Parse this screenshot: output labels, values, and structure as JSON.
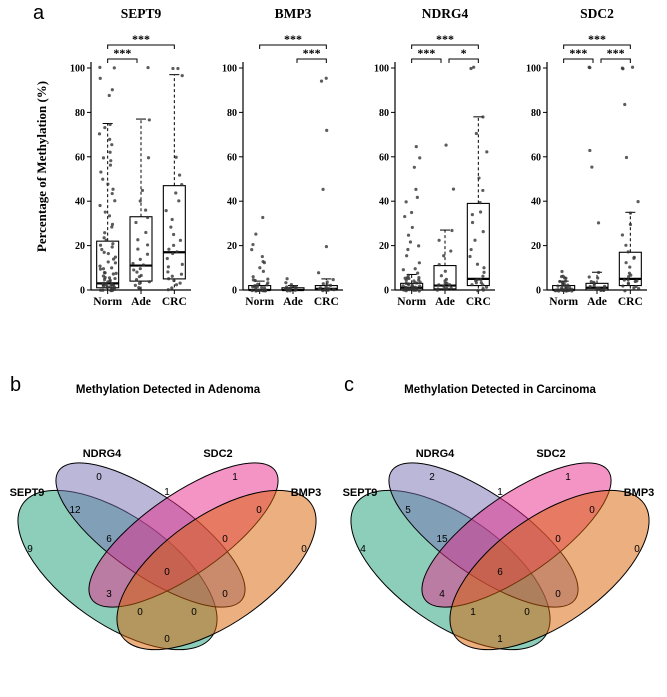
{
  "letters": {
    "a": "a",
    "b": "b",
    "c": "c"
  },
  "chart_data": [
    {
      "type": "boxplot-strip",
      "panel": "a",
      "ylabel": "Percentage of Methylation (%)",
      "ylim": [
        0,
        100
      ],
      "yticks": [
        0,
        20,
        40,
        60,
        80,
        100
      ],
      "groups": [
        "Norm",
        "Ade",
        "CRC"
      ],
      "box_stats_format": [
        "whisker_low",
        "q1",
        "median",
        "q3",
        "whisker_high"
      ],
      "subplots": [
        {
          "title": "SEPT9",
          "boxes": [
            [
              0,
              1,
              3,
              22,
              75
            ],
            [
              0,
              4,
              11,
              33,
              77
            ],
            [
              0,
              5,
              17,
              47,
              97
            ]
          ],
          "points": [
            [
              0,
              0,
              0,
              0,
              0,
              0,
              1,
              1,
              1,
              1,
              1,
              2,
              2,
              2,
              2,
              2,
              3,
              3,
              3,
              3,
              4,
              4,
              4,
              5,
              5,
              5,
              6,
              6,
              7,
              7,
              8,
              8,
              9,
              10,
              10,
              11,
              12,
              13,
              14,
              15,
              16,
              17,
              18,
              19,
              20,
              21,
              22,
              24,
              26,
              28,
              30,
              33,
              35,
              38,
              40,
              43,
              45,
              48,
              50,
              53,
              56,
              58,
              60,
              62,
              65,
              68,
              70,
              73,
              75,
              88,
              90,
              95,
              100,
              100
            ],
            [
              0,
              1,
              2,
              3,
              4,
              5,
              6,
              7,
              8,
              9,
              10,
              11,
              12,
              14,
              16,
              18,
              20,
              23,
              26,
              30,
              33,
              36,
              40,
              45,
              60,
              77,
              100
            ],
            [
              0,
              1,
              2,
              3,
              4,
              5,
              6,
              7,
              8,
              10,
              12,
              14,
              16,
              17,
              18,
              20,
              22,
              25,
              28,
              32,
              36,
              40,
              44,
              47,
              52,
              60,
              97,
              100,
              100
            ]
          ],
          "sig": [
            {
              "a": 0,
              "b": 1,
              "label": "***",
              "level": 1
            },
            {
              "a": 0,
              "b": 2,
              "label": "***",
              "level": 2
            }
          ]
        },
        {
          "title": "BMP3",
          "boxes": [
            [
              0,
              0,
              0,
              2,
              4
            ],
            [
              0,
              0,
              0,
              1,
              2
            ],
            [
              0,
              0,
              0.5,
              2,
              5
            ]
          ],
          "points": [
            [
              0,
              0,
              0,
              0,
              0,
              0,
              0,
              0,
              0,
              0,
              0,
              0,
              0,
              0,
              0,
              1,
              1,
              1,
              1,
              2,
              2,
              2,
              2,
              3,
              3,
              4,
              5,
              5,
              6,
              8,
              10,
              12,
              13,
              15,
              18,
              20,
              25,
              33
            ],
            [
              0,
              0,
              0,
              0,
              0,
              0,
              0,
              0,
              1,
              1,
              1,
              2,
              2,
              3,
              5
            ],
            [
              0,
              0,
              0,
              0,
              0,
              0,
              0,
              0,
              0,
              0,
              0,
              0,
              1,
              1,
              1,
              2,
              2,
              3,
              4,
              5,
              8,
              20,
              45,
              72,
              94,
              95
            ]
          ],
          "sig": [
            {
              "a": 1,
              "b": 2,
              "label": "***",
              "level": 1
            },
            {
              "a": 0,
              "b": 2,
              "label": "***",
              "level": 2
            }
          ]
        },
        {
          "title": "NDRG4",
          "boxes": [
            [
              0,
              0,
              1,
              3,
              7
            ],
            [
              0,
              0.5,
              2,
              11,
              27
            ],
            [
              0,
              2,
              5,
              39,
              78
            ]
          ],
          "points": [
            [
              0,
              0,
              0,
              0,
              0,
              0,
              0,
              0,
              0,
              0,
              1,
              1,
              1,
              1,
              1,
              1,
              2,
              2,
              2,
              2,
              2,
              3,
              3,
              3,
              3,
              4,
              4,
              4,
              5,
              5,
              5,
              6,
              6,
              7,
              8,
              9,
              10,
              12,
              15,
              18,
              20,
              22,
              25,
              28,
              33,
              35,
              40,
              42,
              45,
              55,
              60,
              65
            ],
            [
              0,
              0,
              1,
              1,
              1,
              2,
              2,
              2,
              3,
              3,
              4,
              5,
              6,
              8,
              11,
              15,
              18,
              22,
              27,
              45,
              65
            ],
            [
              0,
              0,
              1,
              1,
              2,
              2,
              3,
              3,
              4,
              5,
              5,
              6,
              8,
              10,
              12,
              15,
              18,
              22,
              26,
              30,
              34,
              35,
              39,
              45,
              50,
              62,
              70,
              78,
              100,
              100
            ]
          ],
          "sig": [
            {
              "a": 0,
              "b": 1,
              "label": "***",
              "level": 1
            },
            {
              "a": 1,
              "b": 2,
              "label": "*",
              "level": 1
            },
            {
              "a": 0,
              "b": 2,
              "label": "***",
              "level": 2
            }
          ]
        },
        {
          "title": "SDC2",
          "boxes": [
            [
              0,
              0,
              0,
              2,
              4
            ],
            [
              0,
              0,
              1,
              3,
              8
            ],
            [
              0,
              2,
              5,
              17,
              35
            ]
          ],
          "points": [
            [
              0,
              0,
              0,
              0,
              0,
              0,
              0,
              0,
              0,
              0,
              0,
              0,
              0,
              0,
              0,
              0,
              0,
              0,
              1,
              1,
              1,
              1,
              1,
              2,
              2,
              2,
              2,
              3,
              3,
              3,
              4,
              4,
              5,
              5,
              6,
              6,
              8
            ],
            [
              0,
              0,
              0,
              0,
              1,
              1,
              1,
              1,
              2,
              2,
              2,
              3,
              3,
              4,
              5,
              6,
              8,
              30,
              55,
              63,
              100,
              100
            ],
            [
              0,
              1,
              1,
              2,
              2,
              3,
              3,
              4,
              4,
              5,
              5,
              6,
              7,
              8,
              10,
              12,
              14,
              15,
              17,
              20,
              25,
              30,
              35,
              40,
              60,
              84,
              100,
              100,
              100
            ]
          ],
          "sig": [
            {
              "a": 0,
              "b": 1,
              "label": "***",
              "level": 1
            },
            {
              "a": 1,
              "b": 2,
              "label": "***",
              "level": 1
            },
            {
              "a": 0,
              "b": 2,
              "label": "***",
              "level": 2
            }
          ]
        }
      ]
    },
    {
      "type": "venn4",
      "panel": "b",
      "title": "Methylation Detected in Adenoma",
      "sets": [
        "SEPT9",
        "NDRG4",
        "SDC2",
        "BMP3"
      ],
      "set_colors": {
        "SEPT9": "#1B9E77",
        "NDRG4": "#7570B3",
        "SDC2": "#E7298A",
        "BMP3": "#D95F02"
      },
      "regions": {
        "sept9": 9,
        "ndrg4": 0,
        "sdc2": 1,
        "bmp3": 0,
        "sept9_ndrg4": 12,
        "ndrg4_sdc2": 1,
        "sdc2_bmp3": 0,
        "sept9_ndrg4_sdc2": 6,
        "ndrg4_sdc2_bmp3": 0,
        "sept9_sdc2": 3,
        "ndrg4_bmp3": 0,
        "sept9_sdc2_bmp3": 0,
        "sept9_ndrg4_bmp3": 0,
        "sept9_bmp3": 0,
        "all_four": 0
      }
    },
    {
      "type": "venn4",
      "panel": "c",
      "title": "Methylation Detected in Carcinoma",
      "sets": [
        "SEPT9",
        "NDRG4",
        "SDC2",
        "BMP3"
      ],
      "set_colors": {
        "SEPT9": "#1B9E77",
        "NDRG4": "#7570B3",
        "SDC2": "#E7298A",
        "BMP3": "#D95F02"
      },
      "regions": {
        "sept9": 4,
        "ndrg4": 2,
        "sdc2": 1,
        "bmp3": 0,
        "sept9_ndrg4": 5,
        "ndrg4_sdc2": 1,
        "sdc2_bmp3": 0,
        "sept9_ndrg4_sdc2": 15,
        "ndrg4_sdc2_bmp3": 0,
        "sept9_sdc2": 4,
        "ndrg4_bmp3": 0,
        "sept9_sdc2_bmp3": 1,
        "sept9_ndrg4_bmp3": 0,
        "sept9_bmp3": 1,
        "all_four": 6
      }
    }
  ]
}
